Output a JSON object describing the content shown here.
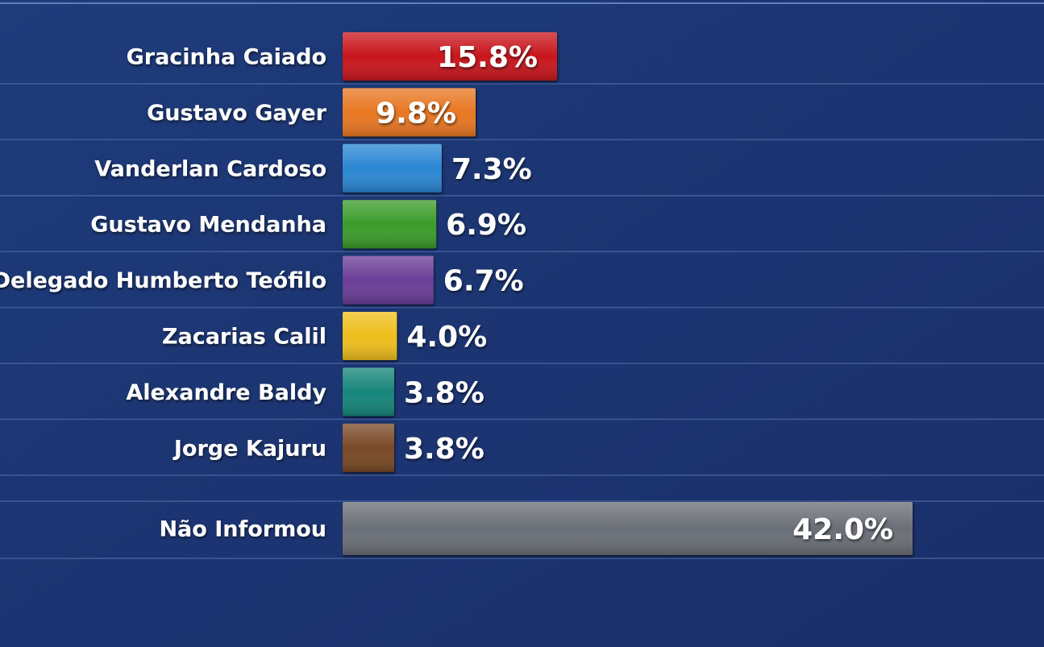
{
  "chart_data": {
    "type": "hbar",
    "categories": [
      "Gracinha Caiado",
      "Gustavo Gayer",
      "Vanderlan Cardoso",
      "Gustavo Mendanha",
      "Delegado Humberto Teófilo",
      "Zacarias Calil",
      "Alexandre Baldy",
      "Jorge Kajuru",
      "Não Informou"
    ],
    "values": [
      15.8,
      9.8,
      7.3,
      6.9,
      6.7,
      4.0,
      3.8,
      3.8,
      42.0
    ],
    "value_labels": [
      "15.8%",
      "9.8%",
      "7.3%",
      "6.9%",
      "6.7%",
      "4.0%",
      "3.8%",
      "3.8%",
      "42.0%"
    ],
    "colors": [
      "#c8161e",
      "#e87722",
      "#2a86d2",
      "#3a9b2a",
      "#6a3c96",
      "#eebe1a",
      "#12857a",
      "#7a4a26",
      "#6b6e76"
    ]
  }
}
